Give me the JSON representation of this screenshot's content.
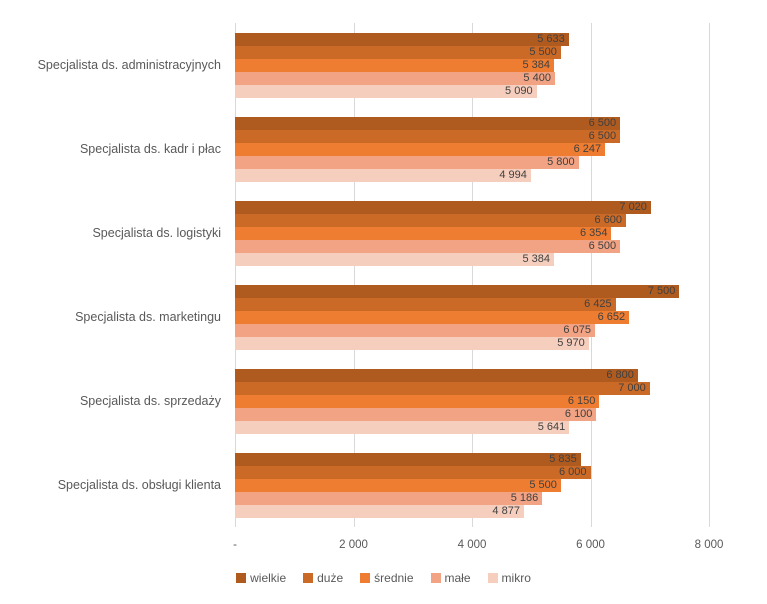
{
  "chart_data": {
    "type": "bar",
    "orientation": "horizontal",
    "title": "",
    "xlabel": "",
    "ylabel": "",
    "xlim": [
      0,
      8000
    ],
    "x_ticks": [
      "-",
      "2 000",
      "4 000",
      "6 000",
      "8 000"
    ],
    "x_tick_values": [
      0,
      2000,
      4000,
      6000,
      8000
    ],
    "grid": "vertical",
    "legend_position": "bottom",
    "data_labels": "inside-end",
    "label_format": "space-thousands",
    "categories": [
      "Specjalista ds. administracyjnych",
      "Specjalista ds. kadr i płac",
      "Specjalista ds. logistyki",
      "Specjalista ds. marketingu",
      "Specjalista ds. sprzedaży",
      "Specjalista ds. obsługi klienta"
    ],
    "series": [
      {
        "name": "wielkie",
        "color": "#AF5A1E",
        "values": [
          5633,
          6500,
          7020,
          7500,
          6800,
          5835
        ]
      },
      {
        "name": "duże",
        "color": "#CB6A27",
        "values": [
          5500,
          6500,
          6600,
          6425,
          7000,
          6000
        ]
      },
      {
        "name": "średnie",
        "color": "#EE7D31",
        "values": [
          5384,
          6247,
          6354,
          6652,
          6150,
          5500
        ]
      },
      {
        "name": "małe",
        "color": "#F1A383",
        "values": [
          5400,
          5800,
          6500,
          6075,
          6100,
          5186
        ]
      },
      {
        "name": "mikro",
        "color": "#F6CEBD",
        "values": [
          5090,
          4994,
          5384,
          5970,
          5641,
          4877
        ]
      }
    ],
    "colors": {
      "gridline": "#d9d9d9",
      "axis_text": "#595959",
      "category_text": "#595959",
      "data_label_text": "#404040",
      "background": "#ffffff"
    }
  }
}
